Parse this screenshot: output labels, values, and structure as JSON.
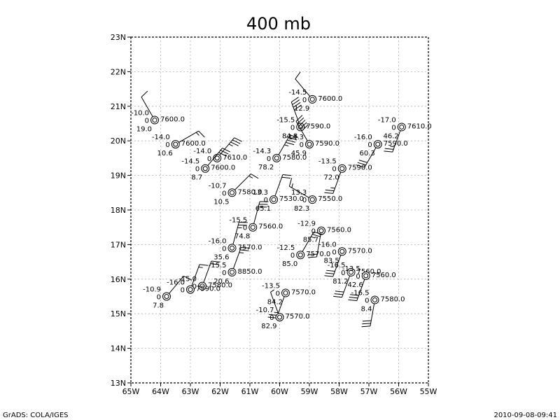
{
  "title": "400 mb",
  "footer": {
    "left": "GrADS: COLA/IGES",
    "right": "2010-09-08-09:41"
  },
  "axes": {
    "lon_min": -65,
    "lon_max": -55,
    "lat_min": 13,
    "lat_max": 23,
    "x_ticks": [
      {
        "value": -65,
        "label": "65W"
      },
      {
        "value": -64,
        "label": "64W"
      },
      {
        "value": -63,
        "label": "63W"
      },
      {
        "value": -62,
        "label": "62W"
      },
      {
        "value": -61,
        "label": "61W"
      },
      {
        "value": -60,
        "label": "60W"
      },
      {
        "value": -59,
        "label": "59W"
      },
      {
        "value": -58,
        "label": "58W"
      },
      {
        "value": -57,
        "label": "57W"
      },
      {
        "value": -56,
        "label": "56W"
      },
      {
        "value": -55,
        "label": "55W"
      }
    ],
    "y_ticks": [
      {
        "value": 13,
        "label": "13N"
      },
      {
        "value": 14,
        "label": "14N"
      },
      {
        "value": 15,
        "label": "15N"
      },
      {
        "value": 16,
        "label": "16N"
      },
      {
        "value": 17,
        "label": "17N"
      },
      {
        "value": 18,
        "label": "18N"
      },
      {
        "value": 19,
        "label": "19N"
      },
      {
        "value": 20,
        "label": "20N"
      },
      {
        "value": 21,
        "label": "21N"
      },
      {
        "value": 22,
        "label": "22N"
      },
      {
        "value": 23,
        "label": "23N"
      }
    ],
    "grid": true
  },
  "stations": [
    {
      "lon": -58.9,
      "lat": 21.2,
      "temp": "-14.5",
      "dew": "0",
      "height": "7600.0",
      "val": "12.9",
      "dir": 320,
      "speed": 10
    },
    {
      "lon": -64.2,
      "lat": 20.6,
      "temp": "-10.0",
      "dew": "0",
      "height": "7600.0",
      "val": "19.0",
      "dir": 330,
      "speed": 10
    },
    {
      "lon": -59.3,
      "lat": 20.4,
      "temp": "-15.5",
      "dew": "0",
      "height": "7590.0",
      "val": "84.8",
      "dir": 340,
      "speed": 40
    },
    {
      "lon": -55.9,
      "lat": 20.4,
      "temp": "-17.0",
      "dew": "0",
      "height": "7610.0",
      "val": "46.2",
      "dir": 200,
      "speed": 25
    },
    {
      "lon": -63.5,
      "lat": 19.9,
      "temp": "-14.0",
      "dew": "0",
      "height": "7600.0",
      "val": "10.6",
      "dir": 60,
      "speed": 15
    },
    {
      "lon": -59.0,
      "lat": 19.9,
      "temp": "-14.3",
      "dew": "0",
      "height": "7590.0",
      "val": "45.9",
      "dir": 330,
      "speed": 50
    },
    {
      "lon": -56.7,
      "lat": 19.9,
      "temp": "-16.0",
      "dew": "0",
      "height": "7590.0",
      "val": "60.3",
      "dir": 210,
      "speed": 30
    },
    {
      "lon": -62.1,
      "lat": 19.5,
      "temp": "-14.0",
      "dew": "0",
      "height": "7610.0",
      "val": "",
      "dir": 40,
      "speed": 35
    },
    {
      "lon": -60.1,
      "lat": 19.5,
      "temp": "-14.3",
      "dew": "0",
      "height": "7580.0",
      "val": "78.2",
      "dir": 30,
      "speed": 45
    },
    {
      "lon": -62.5,
      "lat": 19.2,
      "temp": "-14.5",
      "dew": "0",
      "height": "7600.0",
      "val": "8.7",
      "dir": 40,
      "speed": 30
    },
    {
      "lon": -57.9,
      "lat": 19.2,
      "temp": "-13.5",
      "dew": "0",
      "height": "7590.0",
      "val": "72.0",
      "dir": 200,
      "speed": 25
    },
    {
      "lon": -61.6,
      "lat": 18.5,
      "temp": "-10.7",
      "dew": "0",
      "height": "7580.0",
      "val": "10.5",
      "dir": 45,
      "speed": 15
    },
    {
      "lon": -60.2,
      "lat": 18.3,
      "temp": "13.3",
      "dew": "0",
      "height": "7530.0",
      "val": "65.1",
      "dir": 20,
      "speed": 20
    },
    {
      "lon": -58.9,
      "lat": 18.3,
      "temp": "13.3",
      "dew": "0",
      "height": "7550.0",
      "val": "82.3",
      "dir": 300,
      "speed": 15
    },
    {
      "lon": -60.9,
      "lat": 17.5,
      "temp": "-15.5",
      "dew": "0",
      "height": "7560.0",
      "val": "74.8",
      "dir": 15,
      "speed": 30
    },
    {
      "lon": -58.6,
      "lat": 17.4,
      "temp": "-12.9",
      "dew": "0",
      "height": "7560.0",
      "val": "85.7",
      "dir": 190,
      "speed": 20
    },
    {
      "lon": -61.6,
      "lat": 16.9,
      "temp": "-16.0",
      "dew": "0",
      "height": "7570.0",
      "val": "35.6",
      "dir": 15,
      "speed": 25
    },
    {
      "lon": -57.9,
      "lat": 16.8,
      "temp": "-16.0",
      "dew": "0",
      "height": "7570.0",
      "val": "83.5",
      "dir": 200,
      "speed": 30
    },
    {
      "lon": -59.3,
      "lat": 16.7,
      "temp": "-12.5",
      "dew": "0",
      "height": "7570.0",
      "val": "85.0",
      "dir": 30,
      "speed": 25
    },
    {
      "lon": -61.6,
      "lat": 16.2,
      "temp": "-15.5",
      "dew": "0",
      "height": "8850.0",
      "val": "20.6",
      "dir": 20,
      "speed": 25
    },
    {
      "lon": -57.6,
      "lat": 16.2,
      "temp": "-16.5",
      "dew": "0",
      "height": "7560.0",
      "val": "81.2",
      "dir": 200,
      "speed": 30
    },
    {
      "lon": -57.1,
      "lat": 16.1,
      "temp": "-13.5",
      "dew": "0",
      "height": "7560.0",
      "val": "42.6",
      "dir": 200,
      "speed": 30
    },
    {
      "lon": -62.6,
      "lat": 15.8,
      "temp": "-15.0",
      "dew": "0",
      "height": "7580.0",
      "val": "",
      "dir": 20,
      "speed": 20
    },
    {
      "lon": -63.0,
      "lat": 15.7,
      "temp": "-16.0",
      "dew": "0",
      "height": "7590.0",
      "val": "",
      "dir": 20,
      "speed": 15
    },
    {
      "lon": -59.8,
      "lat": 15.6,
      "temp": "-13.5",
      "dew": "0",
      "height": "7570.0",
      "val": "84.2",
      "dir": 200,
      "speed": 25
    },
    {
      "lon": -63.8,
      "lat": 15.5,
      "temp": "-10.9",
      "dew": "0",
      "height": "",
      "val": "7.8",
      "dir": 40,
      "speed": 10
    },
    {
      "lon": -56.8,
      "lat": 15.4,
      "temp": "-16.5",
      "dew": "0",
      "height": "7580.0",
      "val": "8.4",
      "dir": 190,
      "speed": 30
    },
    {
      "lon": -60.0,
      "lat": 14.9,
      "temp": "-10.7",
      "dew": "0",
      "height": "7570.0",
      "val": "82.9",
      "dir": 340,
      "speed": 5
    }
  ]
}
